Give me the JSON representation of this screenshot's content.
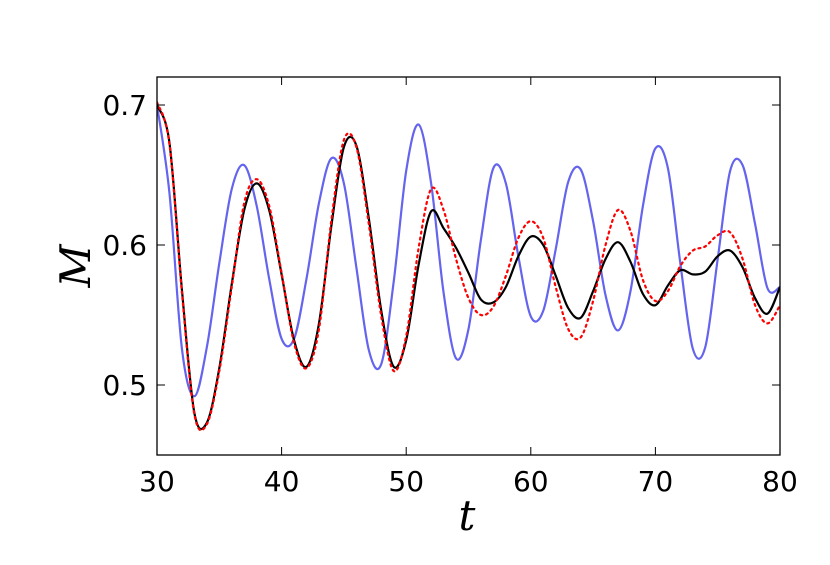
{
  "chart_data": {
    "type": "line",
    "xlabel": "t",
    "ylabel": "M",
    "x": [
      30,
      31,
      32,
      33,
      34,
      35,
      36,
      37,
      38,
      39,
      40,
      41,
      42,
      43,
      44,
      45,
      46,
      47,
      48,
      49,
      50,
      51,
      52,
      53,
      54,
      55,
      56,
      57,
      58,
      59,
      60,
      61,
      62,
      63,
      64,
      65,
      66,
      67,
      68,
      69,
      70,
      71,
      72,
      73,
      74,
      75,
      76,
      77,
      78,
      79,
      80
    ],
    "series": [
      {
        "color": "#6464ee",
        "linestyle": "solid",
        "values": [
          0.7,
          0.637,
          0.526,
          0.492,
          0.527,
          0.587,
          0.64,
          0.657,
          0.628,
          0.576,
          0.533,
          0.533,
          0.576,
          0.63,
          0.662,
          0.644,
          0.584,
          0.525,
          0.515,
          0.574,
          0.653,
          0.686,
          0.644,
          0.566,
          0.519,
          0.54,
          0.604,
          0.655,
          0.644,
          0.592,
          0.549,
          0.553,
          0.597,
          0.645,
          0.654,
          0.617,
          0.564,
          0.539,
          0.567,
          0.628,
          0.669,
          0.655,
          0.587,
          0.526,
          0.527,
          0.59,
          0.653,
          0.657,
          0.615,
          0.569,
          0.57
        ]
      },
      {
        "color": "#000000",
        "linestyle": "solid",
        "values": [
          0.7,
          0.673,
          0.568,
          0.48,
          0.473,
          0.512,
          0.572,
          0.625,
          0.644,
          0.625,
          0.579,
          0.532,
          0.513,
          0.544,
          0.614,
          0.67,
          0.671,
          0.619,
          0.553,
          0.513,
          0.532,
          0.586,
          0.624,
          0.612,
          0.598,
          0.58,
          0.561,
          0.559,
          0.57,
          0.592,
          0.606,
          0.6,
          0.578,
          0.555,
          0.548,
          0.567,
          0.59,
          0.602,
          0.588,
          0.565,
          0.557,
          0.571,
          0.582,
          0.579,
          0.581,
          0.592,
          0.596,
          0.584,
          0.562,
          0.551,
          0.57
        ]
      },
      {
        "color": "#ff0000",
        "linestyle": "dotted",
        "values": [
          0.702,
          0.672,
          0.566,
          0.479,
          0.472,
          0.51,
          0.57,
          0.63,
          0.647,
          0.628,
          0.58,
          0.53,
          0.512,
          0.54,
          0.618,
          0.675,
          0.67,
          0.615,
          0.549,
          0.51,
          0.535,
          0.598,
          0.64,
          0.625,
          0.59,
          0.562,
          0.55,
          0.556,
          0.578,
          0.605,
          0.617,
          0.605,
          0.57,
          0.54,
          0.534,
          0.56,
          0.6,
          0.625,
          0.61,
          0.575,
          0.56,
          0.567,
          0.585,
          0.596,
          0.599,
          0.607,
          0.609,
          0.59,
          0.557,
          0.544,
          0.557
        ]
      }
    ],
    "xlim": [
      30,
      80
    ],
    "xticks": [
      30,
      40,
      50,
      60,
      70,
      80
    ],
    "ylim": [
      0.45,
      0.72
    ],
    "yticks": [
      0.5,
      0.6,
      0.7
    ]
  }
}
